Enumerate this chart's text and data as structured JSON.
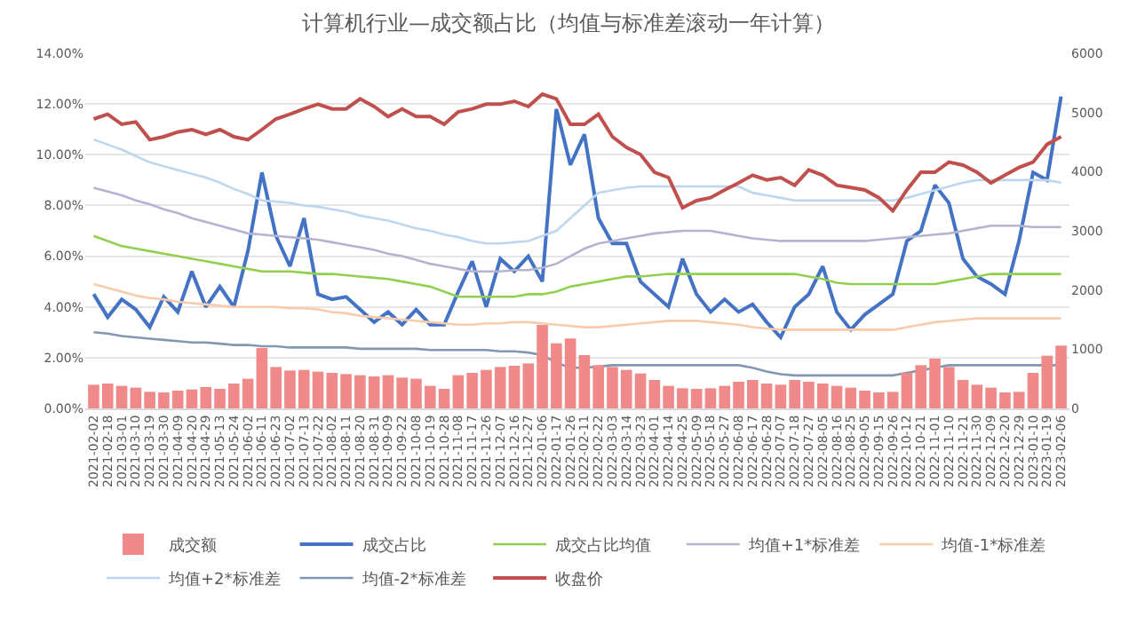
{
  "chart_data": {
    "type": "line",
    "title": "计算机行业—成交额占比（均值与标准差滚动一年计算）",
    "categories": [
      "2021-02-02",
      "2021-02-18",
      "2021-03-01",
      "2021-03-10",
      "2021-03-19",
      "2021-03-30",
      "2021-04-09",
      "2021-04-20",
      "2021-04-29",
      "2021-05-13",
      "2021-05-24",
      "2021-06-02",
      "2021-06-11",
      "2021-06-23",
      "2021-07-02",
      "2021-07-13",
      "2021-07-22",
      "2021-08-02",
      "2021-08-11",
      "2021-08-20",
      "2021-08-31",
      "2021-09-09",
      "2021-09-22",
      "2021-10-08",
      "2021-10-19",
      "2021-10-28",
      "2021-11-08",
      "2021-11-17",
      "2021-11-26",
      "2021-12-07",
      "2021-12-16",
      "2021-12-27",
      "2022-01-06",
      "2022-01-17",
      "2022-01-26",
      "2022-02-11",
      "2022-02-22",
      "2022-03-03",
      "2022-03-14",
      "2022-03-23",
      "2022-04-01",
      "2022-04-14",
      "2022-04-25",
      "2022-05-09",
      "2022-05-18",
      "2022-05-27",
      "2022-06-08",
      "2022-06-17",
      "2022-06-28",
      "2022-07-07",
      "2022-07-18",
      "2022-07-27",
      "2022-08-05",
      "2022-08-16",
      "2022-08-25",
      "2022-09-05",
      "2022-09-15",
      "2022-09-26",
      "2022-10-12",
      "2022-10-21",
      "2022-11-01",
      "2022-11-10",
      "2022-11-21",
      "2022-11-30",
      "2022-12-09",
      "2022-12-20",
      "2022-12-29",
      "2023-01-10",
      "2023-01-19",
      "2023-02-06"
    ],
    "series": [
      {
        "name": "成交额",
        "type": "bar",
        "axis": "y2",
        "color": "#f08a8a",
        "values": [
          400,
          420,
          380,
          350,
          280,
          270,
          300,
          320,
          360,
          330,
          420,
          500,
          1020,
          700,
          640,
          650,
          620,
          600,
          580,
          560,
          540,
          560,
          520,
          500,
          380,
          330,
          560,
          600,
          650,
          700,
          720,
          760,
          1410,
          1100,
          1180,
          900,
          730,
          700,
          650,
          590,
          480,
          380,
          340,
          330,
          340,
          380,
          450,
          480,
          420,
          400,
          480,
          450,
          420,
          380,
          350,
          300,
          270,
          280,
          600,
          730,
          840,
          700,
          480,
          400,
          350,
          270,
          280,
          600,
          890,
          1060
        ]
      },
      {
        "name": "成交占比",
        "color": "#4472c4",
        "values": [
          4.5,
          3.6,
          4.3,
          3.9,
          3.2,
          4.4,
          3.8,
          5.4,
          4.0,
          4.8,
          4.0,
          6.2,
          9.3,
          6.8,
          5.6,
          7.5,
          4.5,
          4.3,
          4.4,
          3.9,
          3.4,
          3.8,
          3.3,
          3.9,
          3.3,
          3.3,
          4.6,
          5.8,
          4.0,
          5.9,
          5.4,
          6.0,
          5.0,
          11.8,
          9.6,
          10.8,
          7.5,
          6.5,
          6.5,
          5.0,
          4.5,
          4.0,
          5.9,
          4.5,
          3.8,
          4.3,
          3.8,
          4.1,
          3.4,
          2.8,
          4.0,
          4.5,
          5.6,
          3.8,
          3.1,
          3.7,
          4.1,
          4.5,
          6.6,
          7.0,
          8.8,
          8.1,
          5.9,
          5.2,
          4.9,
          4.5,
          6.6,
          9.3,
          9.0,
          12.3
        ]
      },
      {
        "name": "成交占比均值",
        "color": "#92d050",
        "values": [
          6.8,
          6.6,
          6.4,
          6.3,
          6.2,
          6.1,
          6.0,
          5.9,
          5.8,
          5.7,
          5.6,
          5.5,
          5.4,
          5.4,
          5.4,
          5.35,
          5.3,
          5.3,
          5.25,
          5.2,
          5.15,
          5.1,
          5.0,
          4.9,
          4.8,
          4.6,
          4.4,
          4.4,
          4.4,
          4.4,
          4.4,
          4.5,
          4.5,
          4.6,
          4.8,
          4.9,
          5.0,
          5.1,
          5.2,
          5.2,
          5.25,
          5.3,
          5.3,
          5.3,
          5.3,
          5.3,
          5.3,
          5.3,
          5.3,
          5.3,
          5.3,
          5.2,
          5.1,
          4.95,
          4.9,
          4.9,
          4.9,
          4.9,
          4.9,
          4.9,
          4.9,
          5.0,
          5.1,
          5.2,
          5.3,
          5.3,
          5.3,
          5.3,
          5.3,
          5.3
        ]
      },
      {
        "name": "均值+1*标准差",
        "color": "#b4b4d2",
        "values": [
          8.7,
          8.55,
          8.4,
          8.2,
          8.05,
          7.85,
          7.7,
          7.5,
          7.35,
          7.2,
          7.05,
          6.9,
          6.85,
          6.8,
          6.75,
          6.7,
          6.65,
          6.55,
          6.45,
          6.35,
          6.25,
          6.1,
          6.0,
          5.85,
          5.7,
          5.6,
          5.5,
          5.4,
          5.4,
          5.4,
          5.45,
          5.45,
          5.55,
          5.7,
          6.0,
          6.3,
          6.5,
          6.6,
          6.7,
          6.8,
          6.9,
          6.95,
          7.0,
          7.0,
          7.0,
          6.9,
          6.8,
          6.7,
          6.65,
          6.6,
          6.6,
          6.6,
          6.6,
          6.6,
          6.6,
          6.6,
          6.65,
          6.7,
          6.75,
          6.8,
          6.85,
          6.9,
          7.0,
          7.1,
          7.2,
          7.2,
          7.2,
          7.15,
          7.15,
          7.15
        ]
      },
      {
        "name": "均值-1*标准差",
        "color": "#f8cbad",
        "values": [
          4.9,
          4.75,
          4.6,
          4.45,
          4.35,
          4.3,
          4.2,
          4.15,
          4.1,
          4.05,
          4.0,
          4.0,
          4.0,
          4.0,
          3.95,
          3.95,
          3.9,
          3.8,
          3.75,
          3.65,
          3.6,
          3.55,
          3.5,
          3.45,
          3.4,
          3.35,
          3.3,
          3.3,
          3.35,
          3.35,
          3.4,
          3.4,
          3.35,
          3.3,
          3.25,
          3.2,
          3.2,
          3.25,
          3.3,
          3.35,
          3.4,
          3.45,
          3.45,
          3.45,
          3.4,
          3.35,
          3.3,
          3.2,
          3.15,
          3.1,
          3.1,
          3.1,
          3.1,
          3.1,
          3.1,
          3.1,
          3.1,
          3.1,
          3.2,
          3.3,
          3.4,
          3.45,
          3.5,
          3.55,
          3.55,
          3.55,
          3.55,
          3.55,
          3.55,
          3.55
        ]
      },
      {
        "name": "均值+2*标准差",
        "color": "#bdd7ee",
        "values": [
          10.6,
          10.4,
          10.2,
          9.95,
          9.7,
          9.55,
          9.4,
          9.25,
          9.1,
          8.9,
          8.65,
          8.45,
          8.2,
          8.15,
          8.1,
          8.0,
          7.95,
          7.85,
          7.75,
          7.6,
          7.5,
          7.4,
          7.25,
          7.1,
          7.0,
          6.85,
          6.75,
          6.6,
          6.5,
          6.5,
          6.55,
          6.6,
          6.8,
          7.0,
          7.5,
          8.0,
          8.5,
          8.6,
          8.7,
          8.75,
          8.75,
          8.75,
          8.75,
          8.75,
          8.75,
          8.75,
          8.75,
          8.5,
          8.4,
          8.3,
          8.2,
          8.2,
          8.2,
          8.2,
          8.2,
          8.2,
          8.2,
          8.2,
          8.3,
          8.45,
          8.6,
          8.75,
          8.9,
          9.0,
          9.0,
          9.0,
          9.0,
          9.0,
          9.0,
          8.9
        ]
      },
      {
        "name": "均值-2*标准差",
        "color": "#8497b0",
        "values": [
          3.0,
          2.95,
          2.85,
          2.8,
          2.75,
          2.7,
          2.65,
          2.6,
          2.6,
          2.55,
          2.5,
          2.5,
          2.45,
          2.45,
          2.4,
          2.4,
          2.4,
          2.4,
          2.4,
          2.35,
          2.35,
          2.35,
          2.35,
          2.35,
          2.3,
          2.3,
          2.3,
          2.3,
          2.3,
          2.25,
          2.25,
          2.2,
          2.1,
          1.8,
          1.6,
          1.6,
          1.65,
          1.7,
          1.7,
          1.7,
          1.7,
          1.7,
          1.7,
          1.7,
          1.7,
          1.7,
          1.7,
          1.6,
          1.45,
          1.35,
          1.3,
          1.3,
          1.3,
          1.3,
          1.3,
          1.3,
          1.3,
          1.3,
          1.4,
          1.5,
          1.6,
          1.7,
          1.7,
          1.7,
          1.7,
          1.7,
          1.7,
          1.7,
          1.7,
          1.7
        ]
      },
      {
        "name": "收盘价",
        "axis": "y2",
        "color": "#c0504d",
        "values": [
          4890,
          4970,
          4800,
          4840,
          4540,
          4590,
          4670,
          4710,
          4630,
          4710,
          4590,
          4540,
          4710,
          4890,
          4970,
          5060,
          5140,
          5060,
          5060,
          5230,
          5100,
          4930,
          5060,
          4930,
          4930,
          4800,
          5010,
          5060,
          5140,
          5140,
          5190,
          5100,
          5310,
          5230,
          4800,
          4800,
          4970,
          4590,
          4410,
          4290,
          3990,
          3900,
          3390,
          3510,
          3560,
          3690,
          3810,
          3940,
          3860,
          3900,
          3770,
          4030,
          3940,
          3770,
          3730,
          3690,
          3560,
          3340,
          3690,
          3990,
          3990,
          4160,
          4110,
          3990,
          3810,
          3940,
          4070,
          4160,
          4460,
          4590
        ]
      }
    ],
    "ylim": [
      0,
      14
    ],
    "yticks": [
      {
        "value": 0,
        "label": "0.00%"
      },
      {
        "value": 2,
        "label": "2.00%"
      },
      {
        "value": 4,
        "label": "4.00%"
      },
      {
        "value": 6,
        "label": "6.00%"
      },
      {
        "value": 8,
        "label": "8.00%"
      },
      {
        "value": 10,
        "label": "10.00%"
      },
      {
        "value": 12,
        "label": "12.00%"
      },
      {
        "value": 14,
        "label": "14.00%"
      }
    ],
    "y2lim": [
      0,
      6000
    ],
    "y2ticks": [
      0,
      1000,
      2000,
      3000,
      4000,
      5000,
      6000
    ],
    "grid": "y",
    "legend": "bottom"
  }
}
